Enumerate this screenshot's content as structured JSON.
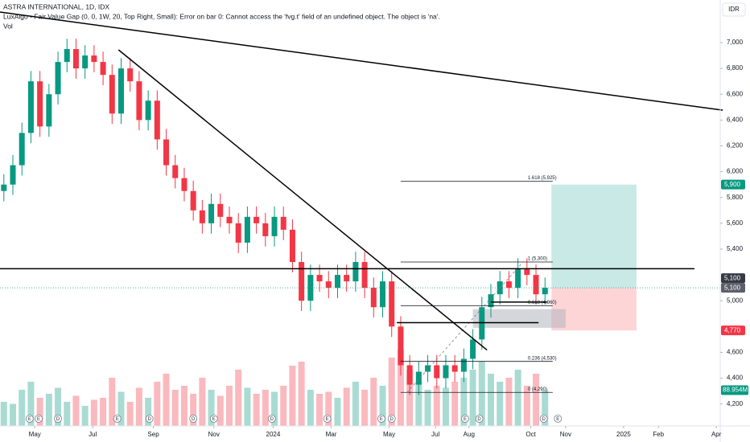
{
  "chart_data": {
    "type": "candlestick",
    "title": "ASTRA INTERNATIONAL, 1D, IDX",
    "indicator_text": "LuxAlgo - Fair Value Gap (0, 0, 1W, 20, Top Right, Small): Error on bar 0: Cannot access the 'fvg.t' field of an undefined object. The object is 'na'.",
    "volume_label": "Vol",
    "currency": "IDR",
    "up_color": "#089981",
    "down_color": "#f23645",
    "x": [
      3,
      10,
      17,
      24,
      31,
      38,
      45,
      52,
      59,
      66,
      73,
      80,
      87,
      94,
      101,
      108,
      115,
      122,
      129,
      136,
      143,
      150,
      157,
      164,
      171,
      178,
      185,
      192,
      199,
      206,
      213,
      220,
      227,
      234,
      241,
      248,
      255,
      262,
      269,
      276,
      283,
      290,
      297,
      304,
      311,
      318,
      325,
      332,
      339,
      346,
      353,
      360,
      367,
      374,
      381,
      388,
      395,
      402,
      409,
      416,
      423
    ],
    "open": [
      5850,
      5900,
      6050,
      6300,
      6700,
      6350,
      6600,
      6850,
      6950,
      6800,
      6900,
      6850,
      6750,
      6450,
      6800,
      6700,
      6400,
      6550,
      6250,
      6050,
      5950,
      5850,
      5700,
      5600,
      5750,
      5650,
      5600,
      5450,
      5650,
      5600,
      5500,
      5650,
      5550,
      5300,
      5000,
      5200,
      5150,
      5100,
      5200,
      5150,
      5300,
      5100,
      4950,
      5150,
      4800,
      4500,
      4350,
      4450,
      4500,
      4400,
      4500,
      4450,
      4550,
      4700,
      4950,
      5050,
      5150,
      5100,
      5250,
      5200,
      5050
    ],
    "high": [
      5980,
      6130,
      6380,
      6780,
      6780,
      6680,
      6930,
      7030,
      7030,
      6980,
      6980,
      6930,
      6830,
      6880,
      6880,
      6780,
      6630,
      6630,
      6330,
      6130,
      6030,
      5930,
      5780,
      5830,
      5830,
      5730,
      5680,
      5730,
      5730,
      5680,
      5730,
      5730,
      5630,
      5380,
      5280,
      5280,
      5230,
      5280,
      5280,
      5380,
      5380,
      5180,
      5230,
      5230,
      4880,
      4580,
      4530,
      4580,
      4580,
      4580,
      4580,
      4630,
      4780,
      5030,
      5130,
      5230,
      5230,
      5330,
      5330,
      5280,
      5180
    ],
    "low": [
      5770,
      5820,
      5970,
      6220,
      6270,
      6270,
      6520,
      6770,
      6720,
      6720,
      6770,
      6670,
      6370,
      6370,
      6620,
      6320,
      6320,
      6170,
      5970,
      5870,
      5770,
      5620,
      5520,
      5520,
      5570,
      5520,
      5370,
      5370,
      5520,
      5420,
      5420,
      5470,
      5220,
      4920,
      4920,
      5070,
      5020,
      5020,
      5070,
      5070,
      5020,
      4870,
      4870,
      4720,
      4420,
      4270,
      4270,
      4370,
      4320,
      4320,
      4370,
      4370,
      4470,
      4620,
      4870,
      4970,
      5020,
      5020,
      5120,
      4970,
      4970
    ],
    "close": [
      5900,
      6050,
      6300,
      6700,
      6350,
      6600,
      6850,
      6950,
      6800,
      6900,
      6850,
      6750,
      6450,
      6800,
      6700,
      6400,
      6550,
      6250,
      6050,
      5950,
      5850,
      5700,
      5600,
      5750,
      5650,
      5600,
      5450,
      5650,
      5600,
      5500,
      5650,
      5550,
      5300,
      5000,
      5200,
      5150,
      5100,
      5200,
      5150,
      5300,
      5100,
      4950,
      5150,
      4800,
      4500,
      4350,
      4450,
      4500,
      4400,
      4500,
      4450,
      4550,
      4700,
      4950,
      5050,
      5150,
      5100,
      5250,
      5200,
      5050,
      5100
    ],
    "volume": [
      60,
      55,
      90,
      110,
      70,
      80,
      95,
      60,
      75,
      50,
      65,
      70,
      120,
      85,
      60,
      95,
      70,
      110,
      130,
      90,
      100,
      80,
      120,
      90,
      75,
      100,
      140,
      95,
      80,
      90,
      85,
      100,
      150,
      160,
      90,
      80,
      85,
      70,
      95,
      110,
      90,
      120,
      100,
      170,
      190,
      140,
      110,
      90,
      100,
      95,
      110,
      120,
      140,
      160,
      130,
      110,
      120,
      140,
      100,
      130,
      89
    ],
    "vol_lim": [
      0,
      300
    ],
    "xlim": [
      0,
      559
    ],
    "ylim": [
      4030,
      7330
    ],
    "xticks": [
      {
        "value": 27,
        "label": "May"
      },
      {
        "value": 72,
        "label": "Jul"
      },
      {
        "value": 119,
        "label": "Sep"
      },
      {
        "value": 166,
        "label": "Nov"
      },
      {
        "value": 212,
        "label": "2024"
      },
      {
        "value": 257,
        "label": "Mar"
      },
      {
        "value": 302,
        "label": "May"
      },
      {
        "value": 338,
        "label": "Jul"
      },
      {
        "value": 364,
        "label": "Aug"
      },
      {
        "value": 412,
        "label": "Oct"
      },
      {
        "value": 439,
        "label": "Nov"
      },
      {
        "value": 484,
        "label": "2025"
      },
      {
        "value": 511,
        "label": "Feb"
      },
      {
        "value": 556,
        "label": "Apr"
      }
    ],
    "yticks": [
      {
        "value": 4200,
        "label": "4,200"
      },
      {
        "value": 4400,
        "label": "4,400"
      },
      {
        "value": 4600,
        "label": "4,600"
      },
      {
        "value": 5000,
        "label": "5,000"
      },
      {
        "value": 5400,
        "label": "5,400"
      },
      {
        "value": 5600,
        "label": "5,600"
      },
      {
        "value": 5800,
        "label": "5,800"
      },
      {
        "value": 6000,
        "label": "6,000"
      },
      {
        "value": 6200,
        "label": "6,200"
      },
      {
        "value": 6400,
        "label": "6,400"
      },
      {
        "value": 6600,
        "label": "6,600"
      },
      {
        "value": 6800,
        "label": "6,800"
      },
      {
        "value": 7000,
        "label": "7,000"
      }
    ],
    "grid": false,
    "trendlines": [
      {
        "x": [
          0,
          561
        ],
        "y": [
          7237,
          6476
        ]
      },
      {
        "x": [
          92,
          378
        ],
        "y": [
          6944,
          4618
        ]
      },
      {
        "x": [
          0,
          539
        ],
        "y": [
          5248,
          5248
        ]
      },
      {
        "x": [
          308,
          418
        ],
        "y": [
          4830,
          4830
        ]
      },
      {
        "x": [
          381,
          425
        ],
        "y": [
          4990,
          4990
        ]
      }
    ],
    "fvg_box": {
      "x": [
        367,
        439
      ],
      "y": [
        4790,
        4935
      ],
      "color": "#b2b5be"
    },
    "fib": {
      "x": [
        311,
        429
      ],
      "levels": [
        {
          "label": "1.618 (5,925)",
          "price": 5925
        },
        {
          "label": "1 (5,300)",
          "price": 5300
        },
        {
          "label": "0.618 (4,960)",
          "price": 4960
        },
        {
          "label": "0.236 (4,530)",
          "price": 4530
        },
        {
          "label": "0 (4,290)",
          "price": 4290
        }
      ]
    },
    "position": {
      "x": [
        428,
        494
      ],
      "entry": 5100,
      "target": 5900,
      "stop": 4770,
      "profit_color": "#b2dfdb",
      "loss_color": "#fccbcd"
    },
    "price_tags": [
      {
        "value": 5900,
        "label": "5,900",
        "color": "#089981"
      },
      {
        "value": 5100,
        "label": "5,100",
        "color": "#5d606b"
      },
      {
        "value": 5100,
        "label": "5,100",
        "color": "#363a45"
      },
      {
        "value": 4770,
        "label": "4,770",
        "color": "#f23645"
      }
    ],
    "volume_tag": {
      "value": 89,
      "label": "88.954M",
      "color": "#089981"
    },
    "events": [
      {
        "x": 23,
        "label": "E"
      },
      {
        "x": 30,
        "label": "E"
      },
      {
        "x": 45,
        "label": "D"
      },
      {
        "x": 91,
        "label": "E"
      },
      {
        "x": 116,
        "label": "D"
      },
      {
        "x": 150,
        "label": "D"
      },
      {
        "x": 166,
        "label": "E"
      },
      {
        "x": 211,
        "label": "D"
      },
      {
        "x": 254,
        "label": "E"
      },
      {
        "x": 296,
        "label": "E"
      },
      {
        "x": 304,
        "label": "D"
      },
      {
        "x": 361,
        "label": "E"
      },
      {
        "x": 372,
        "label": "D"
      },
      {
        "x": 422,
        "label": "D"
      },
      {
        "x": 433,
        "label": "E"
      }
    ]
  }
}
